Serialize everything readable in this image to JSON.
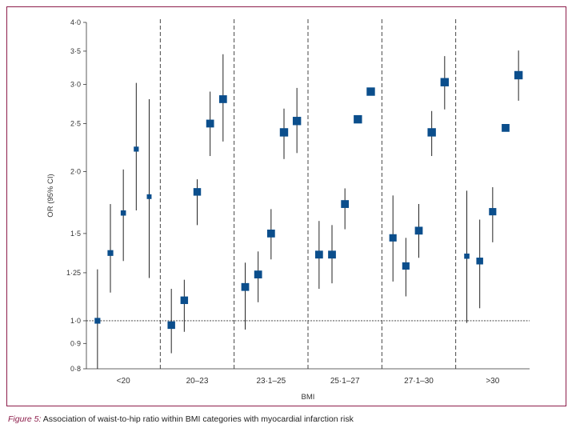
{
  "chart_data": {
    "type": "scatter",
    "subtype": "forest-plot",
    "scale": "log",
    "ylabel": "OR (95% CI)",
    "xlabel": "BMI",
    "ylim": [
      0.8,
      4.0
    ],
    "yticks": [
      {
        "value": 0.8,
        "label": "0·8"
      },
      {
        "value": 0.9,
        "label": "0·9"
      },
      {
        "value": 1.0,
        "label": "1·0"
      },
      {
        "value": 1.25,
        "label": "1·25"
      },
      {
        "value": 1.5,
        "label": "1·5"
      },
      {
        "value": 2.0,
        "label": "2·0"
      },
      {
        "value": 2.5,
        "label": "2·5"
      },
      {
        "value": 3.0,
        "label": "3·0"
      },
      {
        "value": 3.5,
        "label": "3·5"
      },
      {
        "value": 4.0,
        "label": "4·0"
      }
    ],
    "reference_line": 1.0,
    "marker_color": "#0b4e8c",
    "groups": [
      {
        "label": "<20",
        "points": [
          {
            "or": 1.0,
            "lo": 0.8,
            "hi": 1.27,
            "weight": 1.0
          },
          {
            "or": 1.37,
            "lo": 1.14,
            "hi": 1.72,
            "weight": 1.0
          },
          {
            "or": 1.65,
            "lo": 1.32,
            "hi": 2.02,
            "weight": 0.8
          },
          {
            "or": 2.22,
            "lo": 1.67,
            "hi": 3.02,
            "weight": 0.7
          },
          {
            "or": 1.78,
            "lo": 1.22,
            "hi": 2.8,
            "weight": 0.6
          }
        ]
      },
      {
        "label": "20–23",
        "points": [
          {
            "or": 0.98,
            "lo": 0.86,
            "hi": 1.16,
            "weight": 1.7
          },
          {
            "or": 1.1,
            "lo": 0.95,
            "hi": 1.21,
            "weight": 1.7
          },
          {
            "or": 1.82,
            "lo": 1.56,
            "hi": 1.93,
            "weight": 1.7
          },
          {
            "or": 2.5,
            "lo": 2.15,
            "hi": 2.9,
            "weight": 1.8
          },
          {
            "or": 2.8,
            "lo": 2.3,
            "hi": 3.45,
            "weight": 1.8
          }
        ]
      },
      {
        "label": "23·1–25",
        "points": [
          {
            "or": 1.17,
            "lo": 0.96,
            "hi": 1.31,
            "weight": 1.8
          },
          {
            "or": 1.24,
            "lo": 1.09,
            "hi": 1.38,
            "weight": 1.8
          },
          {
            "or": 1.5,
            "lo": 1.33,
            "hi": 1.68,
            "weight": 1.8
          },
          {
            "or": 2.4,
            "lo": 2.12,
            "hi": 2.68,
            "weight": 2.0
          },
          {
            "or": 2.53,
            "lo": 2.18,
            "hi": 2.95,
            "weight": 2.0
          }
        ]
      },
      {
        "label": "25·1–27",
        "points": [
          {
            "or": 1.36,
            "lo": 1.16,
            "hi": 1.59,
            "weight": 1.8
          },
          {
            "or": 1.36,
            "lo": 1.19,
            "hi": 1.56,
            "weight": 1.8
          },
          {
            "or": 1.72,
            "lo": 1.53,
            "hi": 1.85,
            "weight": 1.8
          },
          {
            "or": 2.55,
            "lo": 2.55,
            "hi": 2.55,
            "weight": 2.0
          },
          {
            "or": 2.9,
            "lo": 2.9,
            "hi": 2.9,
            "weight": 2.0
          }
        ]
      },
      {
        "label": "27·1–30",
        "points": [
          {
            "or": 1.47,
            "lo": 1.2,
            "hi": 1.79,
            "weight": 1.6
          },
          {
            "or": 1.29,
            "lo": 1.12,
            "hi": 1.47,
            "weight": 1.6
          },
          {
            "or": 1.52,
            "lo": 1.34,
            "hi": 1.72,
            "weight": 1.8
          },
          {
            "or": 2.4,
            "lo": 2.15,
            "hi": 2.65,
            "weight": 2.0
          },
          {
            "or": 3.03,
            "lo": 2.67,
            "hi": 3.42,
            "weight": 2.0
          }
        ]
      },
      {
        "label": ">30",
        "points": [
          {
            "or": 1.35,
            "lo": 0.99,
            "hi": 1.83,
            "weight": 0.8
          },
          {
            "or": 1.32,
            "lo": 1.06,
            "hi": 1.6,
            "weight": 1.4
          },
          {
            "or": 1.66,
            "lo": 1.44,
            "hi": 1.86,
            "weight": 1.6
          },
          {
            "or": 2.45,
            "lo": 2.45,
            "hi": 2.45,
            "weight": 1.8
          },
          {
            "or": 3.13,
            "lo": 2.78,
            "hi": 3.51,
            "weight": 2.0
          }
        ]
      }
    ]
  },
  "caption": {
    "figure_label": "Figure 5:",
    "text": "Association of waist-to-hip ratio within BMI categories with myocardial infarction risk"
  }
}
